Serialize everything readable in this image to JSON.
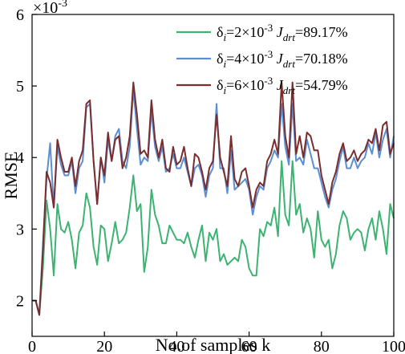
{
  "chart_data": {
    "type": "line",
    "exponent_label": "×10",
    "exponent_power": "-3",
    "xlabel": "No.of samples k",
    "ylabel": "RMSE",
    "xlim": [
      0,
      100
    ],
    "ylim": [
      1.5,
      6
    ],
    "xticks": [
      0,
      20,
      40,
      60,
      80,
      100
    ],
    "yticks": [
      2,
      3,
      4,
      5,
      6
    ],
    "xtick_labels": [
      "0",
      "20",
      "40",
      "60",
      "80",
      "100"
    ],
    "ytick_labels": [
      "2",
      "3",
      "4",
      "5",
      "6"
    ],
    "legend_position": "top-right",
    "grid": false,
    "x": [
      0,
      1,
      2,
      3,
      4,
      5,
      6,
      7,
      8,
      9,
      10,
      11,
      12,
      13,
      14,
      15,
      16,
      17,
      18,
      19,
      20,
      21,
      22,
      23,
      24,
      25,
      26,
      27,
      28,
      29,
      30,
      31,
      32,
      33,
      34,
      35,
      36,
      37,
      38,
      39,
      40,
      41,
      42,
      43,
      44,
      45,
      46,
      47,
      48,
      49,
      50,
      51,
      52,
      53,
      54,
      55,
      56,
      57,
      58,
      59,
      60,
      61,
      62,
      63,
      64,
      65,
      66,
      67,
      68,
      69,
      70,
      71,
      72,
      73,
      74,
      75,
      76,
      77,
      78,
      79,
      80,
      81,
      82,
      83,
      84,
      85,
      86,
      87,
      88,
      89,
      90,
      91,
      92,
      93,
      94,
      95,
      96,
      97,
      98,
      99,
      100
    ],
    "series": [
      {
        "legend_lead": "δ",
        "legend_sub": "i",
        "legend_mid": "=2×10",
        "legend_sup": "-3",
        "legend_j": "J",
        "legend_jsub": "drt",
        "legend_tail": "=89.17%",
        "color": "#3cb371",
        "values": [
          2.0,
          2.0,
          1.8,
          2.45,
          3.4,
          3.0,
          2.35,
          3.35,
          3.0,
          2.95,
          3.1,
          2.85,
          2.45,
          2.95,
          3.05,
          3.5,
          3.3,
          2.75,
          2.5,
          3.05,
          3.0,
          2.55,
          2.8,
          3.1,
          2.8,
          2.85,
          2.95,
          3.3,
          3.75,
          3.25,
          3.35,
          2.4,
          2.75,
          3.55,
          3.2,
          3.05,
          2.8,
          2.8,
          3.05,
          2.95,
          2.85,
          2.85,
          2.8,
          2.95,
          2.75,
          2.6,
          2.85,
          3.05,
          2.55,
          2.95,
          2.85,
          3.0,
          2.55,
          2.65,
          2.5,
          2.55,
          2.6,
          2.55,
          2.85,
          2.75,
          2.45,
          2.35,
          2.35,
          3.0,
          2.9,
          3.1,
          3.05,
          3.3,
          2.9,
          3.95,
          3.2,
          3.05,
          3.95,
          3.2,
          3.35,
          2.95,
          3.15,
          3.0,
          2.6,
          3.25,
          2.85,
          2.75,
          2.85,
          2.45,
          2.65,
          3.05,
          3.25,
          3.15,
          2.85,
          2.95,
          3.0,
          2.95,
          2.7,
          3.0,
          3.15,
          2.85,
          3.25,
          3.0,
          2.65,
          3.35,
          3.15
        ]
      },
      {
        "legend_lead": "δ",
        "legend_sub": "i",
        "legend_mid": "=4×10",
        "legend_sup": "-3",
        "legend_j": "J",
        "legend_jsub": "drt",
        "legend_tail": "=70.18%",
        "color": "#5b8fd1",
        "values": [
          2.0,
          2.0,
          1.8,
          2.8,
          3.7,
          4.2,
          3.3,
          4.15,
          3.9,
          3.75,
          3.75,
          3.95,
          3.5,
          3.85,
          3.95,
          4.7,
          4.75,
          3.95,
          3.35,
          4.0,
          3.65,
          4.25,
          3.95,
          4.3,
          4.4,
          3.95,
          3.85,
          4.15,
          4.95,
          4.4,
          3.9,
          4.0,
          3.95,
          4.65,
          4.15,
          3.95,
          4.15,
          3.8,
          3.85,
          4.05,
          3.85,
          3.85,
          4.0,
          3.8,
          3.6,
          3.85,
          3.9,
          3.75,
          3.45,
          3.75,
          3.85,
          4.75,
          3.85,
          3.85,
          3.5,
          4.1,
          3.55,
          3.6,
          3.65,
          3.7,
          3.55,
          3.2,
          3.45,
          3.6,
          3.55,
          3.85,
          3.95,
          4.1,
          4.0,
          4.75,
          4.15,
          3.9,
          4.75,
          3.95,
          4.0,
          3.9,
          4.25,
          4.05,
          3.85,
          3.85,
          3.65,
          3.45,
          3.3,
          3.55,
          3.7,
          3.95,
          4.15,
          3.85,
          3.85,
          4.0,
          3.85,
          3.95,
          4.0,
          4.2,
          4.05,
          4.35,
          4.0,
          4.25,
          4.4,
          4.0,
          4.3
        ]
      },
      {
        "legend_lead": "δ",
        "legend_sub": "i",
        "legend_mid": "=6×10",
        "legend_sup": "-3",
        "legend_j": "J",
        "legend_jsub": "drt",
        "legend_tail": "=54.79%",
        "color": "#7b2d2d",
        "values": [
          2.0,
          2.0,
          1.8,
          2.7,
          3.8,
          3.65,
          3.3,
          4.25,
          4.0,
          3.8,
          3.8,
          4.0,
          3.6,
          3.95,
          4.1,
          4.75,
          4.8,
          3.95,
          3.35,
          4.0,
          3.75,
          4.35,
          3.95,
          4.25,
          4.3,
          3.85,
          4.0,
          4.3,
          5.05,
          4.6,
          4.05,
          4.1,
          4.0,
          4.8,
          4.25,
          4.0,
          4.25,
          3.85,
          3.8,
          4.15,
          3.9,
          3.95,
          4.15,
          3.85,
          3.6,
          4.05,
          4.0,
          3.8,
          3.55,
          3.85,
          3.95,
          4.6,
          4.0,
          3.8,
          3.6,
          4.3,
          3.7,
          3.6,
          3.8,
          3.85,
          3.6,
          3.3,
          3.55,
          3.65,
          3.6,
          3.95,
          4.05,
          4.25,
          4.05,
          5.05,
          4.3,
          4.0,
          5.05,
          4.05,
          4.3,
          4.0,
          4.35,
          4.3,
          4.1,
          4.1,
          3.75,
          3.55,
          3.35,
          3.65,
          3.8,
          4.05,
          4.2,
          3.95,
          4.0,
          4.1,
          3.95,
          4.05,
          4.1,
          4.25,
          4.2,
          4.4,
          4.1,
          4.45,
          4.5,
          4.05,
          4.2
        ]
      }
    ]
  }
}
